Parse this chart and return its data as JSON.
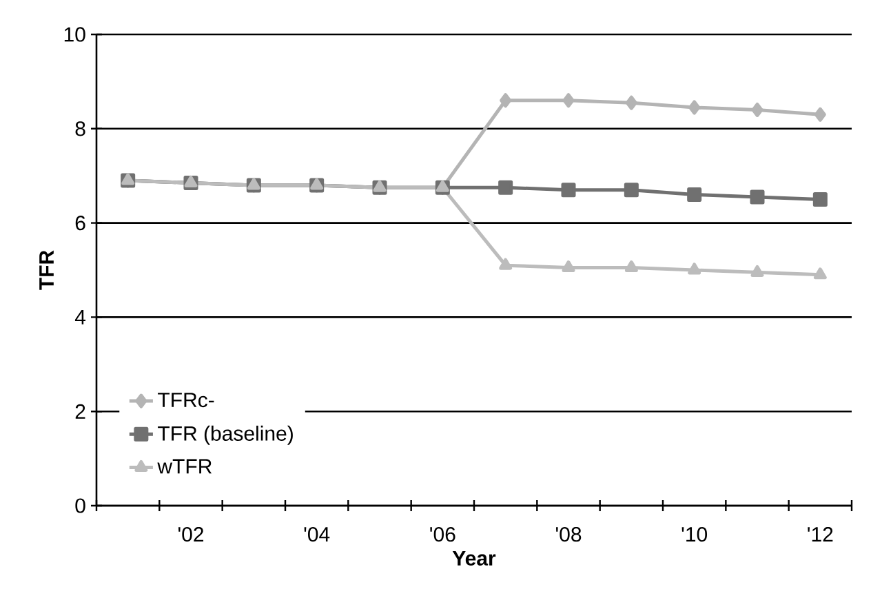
{
  "chart_data": {
    "type": "line",
    "xlabel": "Year",
    "ylabel": "TFR",
    "categories": [
      null,
      "'02",
      null,
      "'04",
      null,
      "'06",
      null,
      "'08",
      null,
      "'10",
      null,
      "'12"
    ],
    "series": [
      {
        "name": "TFRc-",
        "color": "#b4b4b4",
        "marker": "diamond",
        "values": [
          6.9,
          6.85,
          6.8,
          6.8,
          6.75,
          6.75,
          8.6,
          8.6,
          8.55,
          8.45,
          8.4,
          8.3
        ]
      },
      {
        "name": "TFR (baseline)",
        "color": "#707070",
        "marker": "square",
        "values": [
          6.9,
          6.85,
          6.8,
          6.8,
          6.75,
          6.75,
          6.75,
          6.7,
          6.7,
          6.6,
          6.55,
          6.5
        ]
      },
      {
        "name": "wTFR",
        "color": "#bcbcbc",
        "marker": "triangle",
        "values": [
          6.9,
          6.85,
          6.8,
          6.8,
          6.75,
          6.75,
          5.1,
          5.05,
          5.05,
          5.0,
          4.95,
          4.9
        ]
      }
    ],
    "ylim": [
      0,
      10
    ],
    "yticks": [
      0,
      2,
      4,
      6,
      8,
      10
    ],
    "grid": "y",
    "legend": "bottom left"
  }
}
